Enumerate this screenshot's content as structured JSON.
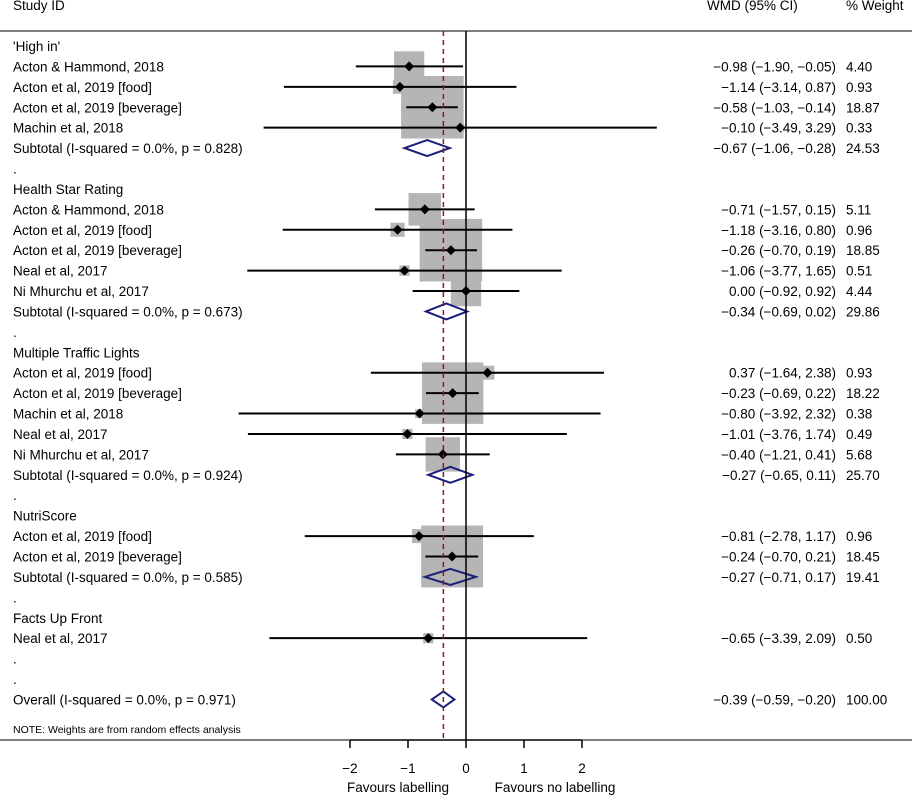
{
  "header": {
    "study_col": "Study ID",
    "effect_col": "WMD (95% CI)",
    "weight_col": "% Weight"
  },
  "colors": {
    "ci_line": "#000000",
    "box": "#b5b5b5",
    "diamond": "#1b1f7a",
    "overall_line": "#8b1a1a"
  },
  "chart_data": {
    "type": "forest",
    "xlim": [
      -2,
      2
    ],
    "ticks": [
      -2,
      -1,
      0,
      1,
      2
    ],
    "tick_labels": [
      "−2",
      "−1",
      "0",
      "1",
      "2"
    ],
    "favours_left": "Favours labelling",
    "favours_right": "Favours no labelling",
    "overall_estimate": -0.39,
    "rows": [
      {
        "kind": "group",
        "label": "'High in'"
      },
      {
        "kind": "study",
        "label": "Acton & Hammond, 2018",
        "est": -0.98,
        "lo": -1.9,
        "hi": -0.05,
        "ci": "−0.98 (−1.90, −0.05)",
        "weight": "4.40",
        "w": 4.4
      },
      {
        "kind": "study",
        "label": "Acton et al, 2019 [food]",
        "est": -1.14,
        "lo": -3.14,
        "hi": 0.87,
        "ci": "−1.14 (−3.14, 0.87)",
        "weight": "0.93",
        "w": 0.93
      },
      {
        "kind": "study",
        "label": "Acton et al, 2019 [beverage]",
        "est": -0.58,
        "lo": -1.03,
        "hi": -0.14,
        "ci": "−0.58 (−1.03, −0.14)",
        "weight": "18.87",
        "w": 18.87
      },
      {
        "kind": "study",
        "label": "Machin et al, 2018",
        "est": -0.1,
        "lo": -3.49,
        "hi": 3.29,
        "ci": "−0.10 (−3.49, 3.29)",
        "weight": "0.33",
        "w": 0.33
      },
      {
        "kind": "subtotal",
        "label": "Subtotal  (I-squared = 0.0%, p = 0.828)",
        "est": -0.67,
        "lo": -1.06,
        "hi": -0.28,
        "ci": "−0.67 (−1.06, −0.28)",
        "weight": "24.53"
      },
      {
        "kind": "dot",
        "label": "."
      },
      {
        "kind": "group",
        "label": "Health Star Rating"
      },
      {
        "kind": "study",
        "label": "Acton & Hammond, 2018",
        "est": -0.71,
        "lo": -1.57,
        "hi": 0.15,
        "ci": "−0.71 (−1.57, 0.15)",
        "weight": "5.11",
        "w": 5.11
      },
      {
        "kind": "study",
        "label": "Acton et al, 2019 [food]",
        "est": -1.18,
        "lo": -3.16,
        "hi": 0.8,
        "ci": "−1.18 (−3.16, 0.80)",
        "weight": "0.96",
        "w": 0.96
      },
      {
        "kind": "study",
        "label": "Acton et al, 2019 [beverage]",
        "est": -0.26,
        "lo": -0.7,
        "hi": 0.19,
        "ci": "−0.26 (−0.70, 0.19)",
        "weight": "18.85",
        "w": 18.85
      },
      {
        "kind": "study",
        "label": "Neal et al, 2017",
        "est": -1.06,
        "lo": -3.77,
        "hi": 1.65,
        "ci": "−1.06 (−3.77, 1.65)",
        "weight": "0.51",
        "w": 0.51
      },
      {
        "kind": "study",
        "label": "Ni Mhurchu et al, 2017",
        "est": 0.0,
        "lo": -0.92,
        "hi": 0.92,
        "ci": "0.00 (−0.92, 0.92)",
        "weight": "4.44",
        "w": 4.44
      },
      {
        "kind": "subtotal",
        "label": "Subtotal  (I-squared = 0.0%, p = 0.673)",
        "est": -0.34,
        "lo": -0.69,
        "hi": 0.02,
        "ci": "−0.34 (−0.69, 0.02)",
        "weight": "29.86"
      },
      {
        "kind": "dot",
        "label": "."
      },
      {
        "kind": "group",
        "label": "Multiple Traffic Lights"
      },
      {
        "kind": "study",
        "label": "Acton et al, 2019 [food]",
        "est": 0.37,
        "lo": -1.64,
        "hi": 2.38,
        "ci": "0.37 (−1.64, 2.38)",
        "weight": "0.93",
        "w": 0.93
      },
      {
        "kind": "study",
        "label": "Acton et al, 2019 [beverage]",
        "est": -0.23,
        "lo": -0.69,
        "hi": 0.22,
        "ci": "−0.23 (−0.69, 0.22)",
        "weight": "18.22",
        "w": 18.22
      },
      {
        "kind": "study",
        "label": "Machin et al, 2018",
        "est": -0.8,
        "lo": -3.92,
        "hi": 2.32,
        "ci": "−0.80 (−3.92, 2.32)",
        "weight": "0.38",
        "w": 0.38
      },
      {
        "kind": "study",
        "label": "Neal et al, 2017",
        "est": -1.01,
        "lo": -3.76,
        "hi": 1.74,
        "ci": "−1.01 (−3.76, 1.74)",
        "weight": "0.49",
        "w": 0.49
      },
      {
        "kind": "study",
        "label": "Ni Mhurchu et al, 2017",
        "est": -0.4,
        "lo": -1.21,
        "hi": 0.41,
        "ci": "−0.40 (−1.21, 0.41)",
        "weight": "5.68",
        "w": 5.68
      },
      {
        "kind": "subtotal",
        "label": "Subtotal  (I-squared = 0.0%, p = 0.924)",
        "est": -0.27,
        "lo": -0.65,
        "hi": 0.11,
        "ci": "−0.27 (−0.65, 0.11)",
        "weight": "25.70"
      },
      {
        "kind": "dot",
        "label": "."
      },
      {
        "kind": "group",
        "label": "NutriScore"
      },
      {
        "kind": "study",
        "label": "Acton et al, 2019 [food]",
        "est": -0.81,
        "lo": -2.78,
        "hi": 1.17,
        "ci": "−0.81 (−2.78, 1.17)",
        "weight": "0.96",
        "w": 0.96
      },
      {
        "kind": "study",
        "label": "Acton et al, 2019 [beverage]",
        "est": -0.24,
        "lo": -0.7,
        "hi": 0.21,
        "ci": "−0.24 (−0.70, 0.21)",
        "weight": "18.45",
        "w": 18.45
      },
      {
        "kind": "subtotal",
        "label": "Subtotal  (I-squared = 0.0%, p = 0.585)",
        "est": -0.27,
        "lo": -0.71,
        "hi": 0.17,
        "ci": "−0.27 (−0.71, 0.17)",
        "weight": "19.41"
      },
      {
        "kind": "dot",
        "label": "."
      },
      {
        "kind": "group",
        "label": "Facts Up Front"
      },
      {
        "kind": "study",
        "label": "Neal et al, 2017",
        "est": -0.65,
        "lo": -3.39,
        "hi": 2.09,
        "ci": "−0.65 (−3.39, 2.09)",
        "weight": "0.50",
        "w": 0.5
      },
      {
        "kind": "dot",
        "label": "."
      },
      {
        "kind": "dot",
        "label": "."
      },
      {
        "kind": "overall",
        "label": "Overall  (I-squared = 0.0%, p = 0.971)",
        "est": -0.39,
        "lo": -0.59,
        "hi": -0.2,
        "ci": "−0.39 (−0.59, −0.20)",
        "weight": "100.00"
      }
    ],
    "note": "NOTE: Weights are from random effects analysis"
  }
}
